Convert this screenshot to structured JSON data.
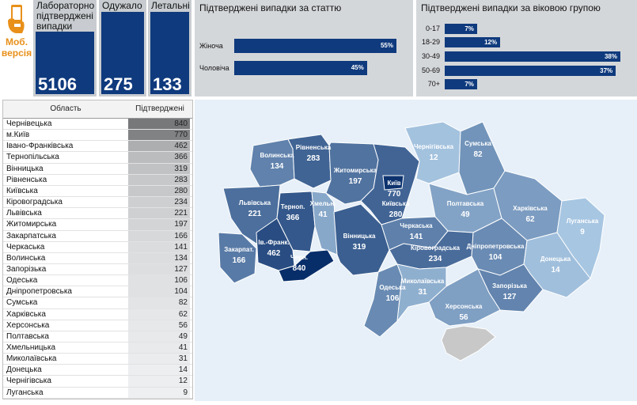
{
  "mobile": {
    "label_line1": "Моб.",
    "label_line2": "версія",
    "icon": "phone-hand-icon"
  },
  "kpis": [
    {
      "title": "Лабораторно підтверджені випадки",
      "value": "5106"
    },
    {
      "title": "Одужало",
      "value": "275"
    },
    {
      "title": "Летальні",
      "value": "133"
    }
  ],
  "gender": {
    "title": "Підтверджені випадки за статтю",
    "rows": [
      {
        "label": "Жіноча",
        "pct": 55,
        "text": "55%"
      },
      {
        "label": "Чоловіча",
        "pct": 45,
        "text": "45%"
      }
    ]
  },
  "age": {
    "title": "Підтверджені випадки за віковою групою",
    "rows": [
      {
        "label": "0-17",
        "pct": 7,
        "text": "7%"
      },
      {
        "label": "18-29",
        "pct": 12,
        "text": "12%"
      },
      {
        "label": "30-49",
        "pct": 38,
        "text": "38%"
      },
      {
        "label": "50-69",
        "pct": 37,
        "text": "37%"
      },
      {
        "label": "70+",
        "pct": 7,
        "text": "7%"
      }
    ]
  },
  "table": {
    "col_region": "Область",
    "col_confirmed": "Підтверджені",
    "rows": [
      {
        "name": "Чернівецька",
        "value": 840
      },
      {
        "name": "м.Київ",
        "value": 770
      },
      {
        "name": "Івано-Франківська",
        "value": 462
      },
      {
        "name": "Тернопільська",
        "value": 366
      },
      {
        "name": "Вінницька",
        "value": 319
      },
      {
        "name": "Рівненська",
        "value": 283
      },
      {
        "name": "Київська",
        "value": 280
      },
      {
        "name": "Кіровоградська",
        "value": 234
      },
      {
        "name": "Львівська",
        "value": 221
      },
      {
        "name": "Житомирська",
        "value": 197
      },
      {
        "name": "Закарпатська",
        "value": 166
      },
      {
        "name": "Черкаська",
        "value": 141
      },
      {
        "name": "Волинська",
        "value": 134
      },
      {
        "name": "Запорізька",
        "value": 127
      },
      {
        "name": "Одеська",
        "value": 106
      },
      {
        "name": "Дніпропетровська",
        "value": 104
      },
      {
        "name": "Сумська",
        "value": 82
      },
      {
        "name": "Харківська",
        "value": 62
      },
      {
        "name": "Херсонська",
        "value": 56
      },
      {
        "name": "Полтавська",
        "value": 49
      },
      {
        "name": "Хмельницька",
        "value": 41
      },
      {
        "name": "Миколаївська",
        "value": 31
      },
      {
        "name": "Донецька",
        "value": 14
      },
      {
        "name": "Чернігівська",
        "value": 12
      },
      {
        "name": "Луганська",
        "value": 9
      }
    ]
  },
  "map": {
    "regions": [
      {
        "key": "volyn",
        "label": "Волинська",
        "value": "134"
      },
      {
        "key": "rivne",
        "label": "Рівненська",
        "value": "283"
      },
      {
        "key": "zhytomyr",
        "label": "Житомирська",
        "value": "197"
      },
      {
        "key": "kyivobl",
        "label": "Київська",
        "value": "280"
      },
      {
        "key": "kyiv",
        "label": "Київ",
        "value": "770"
      },
      {
        "key": "chernihiv",
        "label": "Чернігівська",
        "value": "12"
      },
      {
        "key": "sumy",
        "label": "Сумська",
        "value": "82"
      },
      {
        "key": "lviv",
        "label": "Львівська",
        "value": "221"
      },
      {
        "key": "ternopil",
        "label": "Терноп.",
        "value": "366"
      },
      {
        "key": "khmel",
        "label": "Хмельн.",
        "value": "41"
      },
      {
        "key": "zakarpat",
        "label": "Закарпат.",
        "value": "166"
      },
      {
        "key": "ivfrank",
        "label": "Ів.-Франк.",
        "value": "462"
      },
      {
        "key": "cherniv",
        "label": "Черн.",
        "value": "840"
      },
      {
        "key": "vinnytsia",
        "label": "Вінницька",
        "value": "319"
      },
      {
        "key": "cherkasy",
        "label": "Черкаська",
        "value": "141"
      },
      {
        "key": "poltava",
        "label": "Полтавська",
        "value": "49"
      },
      {
        "key": "kharkiv",
        "label": "Харківська",
        "value": "62"
      },
      {
        "key": "luhansk",
        "label": "Луганська",
        "value": "9"
      },
      {
        "key": "kirovohrad",
        "label": "Кіровоградська",
        "value": "234"
      },
      {
        "key": "dnipro",
        "label": "Дніпропетровська",
        "value": "104"
      },
      {
        "key": "donetsk",
        "label": "Донецька",
        "value": "14"
      },
      {
        "key": "odesa",
        "label": "Одеська",
        "value": "106"
      },
      {
        "key": "mykolaiv",
        "label": "Миколаївська",
        "value": "31"
      },
      {
        "key": "zaporizh",
        "label": "Запорізька",
        "value": "127"
      },
      {
        "key": "kherson",
        "label": "Херсонська",
        "value": "56"
      }
    ]
  }
}
